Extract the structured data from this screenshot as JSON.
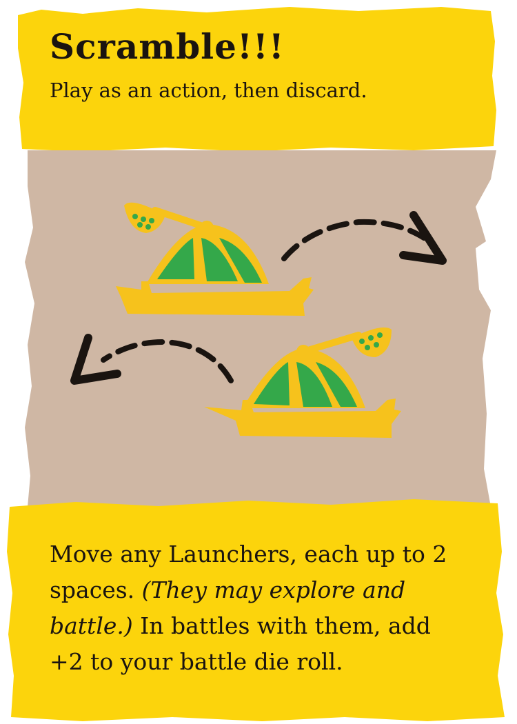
{
  "card": {
    "title": "Scramble!!!",
    "subtitle": "Play as an action, then discard.",
    "rules": {
      "part1": "Move any Launchers, each up to 2 spaces. ",
      "italic": "(They may explore and battle.)",
      "part2": " In battles with them, add +2 to your battle die roll."
    }
  },
  "illustration": {
    "subject": "two launchers with movement arrows",
    "icons": [
      "launcher-icon",
      "launcher-icon",
      "curved-arrow-right-icon",
      "curved-arrow-left-icon"
    ]
  },
  "colors": {
    "banner_yellow": "#fcd40c",
    "parchment": "#cfb7a4",
    "launcher_yellow": "#f6c21c",
    "launcher_green": "#34a84a",
    "ink": "#1a1410"
  }
}
